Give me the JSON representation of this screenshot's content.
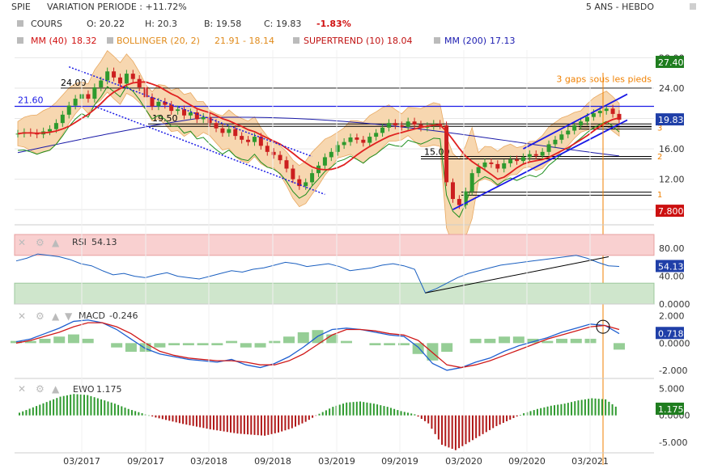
{
  "header": {
    "ticker": "SPIE",
    "variation": "VARIATION PERIODE : +11.72%",
    "period": "5 ANS - HEBDO"
  },
  "legend": {
    "cours": "COURS",
    "open": "O: 20.22",
    "high": "H: 20.3",
    "low": "B: 19.58",
    "close": "C: 19.83",
    "change": "-1.83%",
    "mm40": "MM (40)",
    "mm40_val": "18.32",
    "boll": "BOLLINGER (20, 2)",
    "boll_val": "21.91 - 18.14",
    "st": "SUPERTREND (10)",
    "st_val": "18.04",
    "mm200": "MM (200)",
    "mm200_val": "17.13"
  },
  "panels": {
    "rsi": {
      "label": "RSI",
      "value": "54.13"
    },
    "macd": {
      "label": "MACD",
      "value": "-0.246"
    },
    "ewo": {
      "label": "EWO",
      "value": "1.175"
    }
  },
  "colors": {
    "candle_up": "#2e9a2e",
    "candle_down": "#cc1f1f",
    "mm40": "#e02020",
    "mm200": "#1a1aa8",
    "boll_fill": "#f7d7b0",
    "boll_line": "#e8a860",
    "supertrend": "#1f8f1f",
    "channel": "#1a1ae6",
    "gap_label": "#f08000",
    "rsi_over": "#f9d0d0",
    "rsi_under": "#cfe6cc",
    "rsi_line": "#1a5fc0"
  },
  "chart_data": [
    {
      "type": "candlestick",
      "title": "SPIE",
      "x_ticks": [
        "03/2017",
        "09/2017",
        "03/2018",
        "09/2018",
        "03/2019",
        "09/2019",
        "03/2020",
        "09/2020",
        "03/2021"
      ],
      "y_ticks": [
        8.0,
        12.0,
        16.0,
        20.0,
        24.0,
        28.0
      ],
      "ylim": [
        6,
        29
      ],
      "last_price_badge": "19.83",
      "upper_badge": "27.40",
      "lower_badge": "7.800",
      "levels": [
        {
          "label": "24.00",
          "value": 24.0
        },
        {
          "label": "21.60",
          "value": 21.6
        },
        {
          "label": "19.50",
          "value": 19.5
        },
        {
          "label": "15.00",
          "value": 15.0
        }
      ],
      "annotation": "3 gaps sous les pieds",
      "gap_labels": [
        "3",
        "2",
        "1"
      ],
      "series_approx_close": [
        18.0,
        18.2,
        18.1,
        17.9,
        18.3,
        18.6,
        19.4,
        20.5,
        21.7,
        22.6,
        23.2,
        22.6,
        24.1,
        25.0,
        26.2,
        25.4,
        24.6,
        25.9,
        25.2,
        24.1,
        22.8,
        21.6,
        22.2,
        21.8,
        21.0,
        21.2,
        20.4,
        20.8,
        19.9,
        20.2,
        19.4,
        18.7,
        18.1,
        18.6,
        17.7,
        17.2,
        16.9,
        17.6,
        16.4,
        15.6,
        15.2,
        14.5,
        13.4,
        12.0,
        11.1,
        11.6,
        12.8,
        13.8,
        14.9,
        15.6,
        16.5,
        16.9,
        17.5,
        17.2,
        16.8,
        17.6,
        18.1,
        18.8,
        19.4,
        19.1,
        18.9,
        19.6,
        19.2,
        18.8,
        19.0,
        19.3,
        19.1,
        11.6,
        9.4,
        8.6,
        10.4,
        12.8,
        13.6,
        14.2,
        14.0,
        13.4,
        14.1,
        14.6,
        14.4,
        14.9,
        15.3,
        15.1,
        15.6,
        16.6,
        17.2,
        17.9,
        18.4,
        19.1,
        19.6,
        20.2,
        20.7,
        21.0,
        21.3,
        20.6,
        19.83
      ]
    },
    {
      "type": "line",
      "title": "RSI",
      "y_ticks": [
        0.0,
        40.0,
        80.0
      ],
      "ylim": [
        0,
        100
      ],
      "last_badge": "54.13",
      "values_approx": [
        62,
        66,
        72,
        70,
        68,
        64,
        58,
        55,
        48,
        42,
        44,
        40,
        38,
        42,
        45,
        40,
        38,
        36,
        40,
        44,
        48,
        46,
        50,
        52,
        56,
        60,
        58,
        54,
        56,
        58,
        54,
        48,
        50,
        52,
        56,
        58,
        55,
        50,
        16,
        22,
        30,
        38,
        44,
        48,
        52,
        56,
        58,
        60,
        62,
        64,
        66,
        68,
        70,
        66,
        60,
        55,
        54
      ]
    },
    {
      "type": "line",
      "title": "MACD",
      "y_ticks": [
        -2.0,
        0.0,
        2.0
      ],
      "ylim": [
        -2.6,
        2.4
      ],
      "last_badge": "0.7180",
      "macd_approx": [
        0.1,
        0.3,
        0.7,
        1.1,
        1.6,
        1.7,
        1.5,
        1.0,
        0.3,
        -0.4,
        -0.8,
        -1.0,
        -1.2,
        -1.3,
        -1.4,
        -1.2,
        -1.6,
        -1.8,
        -1.5,
        -1.0,
        -0.3,
        0.5,
        1.0,
        1.1,
        1.0,
        0.8,
        0.6,
        0.5,
        -0.3,
        -1.5,
        -2.0,
        -1.8,
        -1.4,
        -1.1,
        -0.6,
        -0.2,
        0.1,
        0.4,
        0.8,
        1.1,
        1.4,
        1.3,
        0.7
      ],
      "signal_approx": [
        0.0,
        0.2,
        0.5,
        0.8,
        1.2,
        1.5,
        1.5,
        1.2,
        0.7,
        0.0,
        -0.6,
        -0.9,
        -1.1,
        -1.2,
        -1.3,
        -1.3,
        -1.4,
        -1.6,
        -1.6,
        -1.3,
        -0.8,
        -0.1,
        0.6,
        1.0,
        1.0,
        0.9,
        0.7,
        0.6,
        0.2,
        -0.7,
        -1.6,
        -1.8,
        -1.6,
        -1.3,
        -0.9,
        -0.5,
        -0.1,
        0.3,
        0.6,
        0.9,
        1.2,
        1.3,
        1.0
      ]
    },
    {
      "type": "bar",
      "title": "EWO",
      "y_ticks": [
        -5.0,
        0.0,
        5.0
      ],
      "ylim": [
        -7,
        6
      ],
      "last_badge": "1.175",
      "values_approx": [
        0.5,
        1.5,
        2.5,
        3.5,
        4.0,
        3.8,
        3.0,
        2.2,
        1.2,
        0.4,
        -0.4,
        -1.0,
        -1.6,
        -2.1,
        -2.6,
        -3.0,
        -3.4,
        -3.6,
        -3.8,
        -3.2,
        -2.4,
        -1.2,
        0.3,
        1.6,
        2.4,
        2.6,
        2.2,
        1.6,
        0.8,
        0.2,
        -1.5,
        -5.5,
        -6.5,
        -5.0,
        -3.5,
        -2.0,
        -0.8,
        0.4,
        1.2,
        1.8,
        2.2,
        2.8,
        3.2,
        3.0,
        1.175
      ]
    }
  ]
}
